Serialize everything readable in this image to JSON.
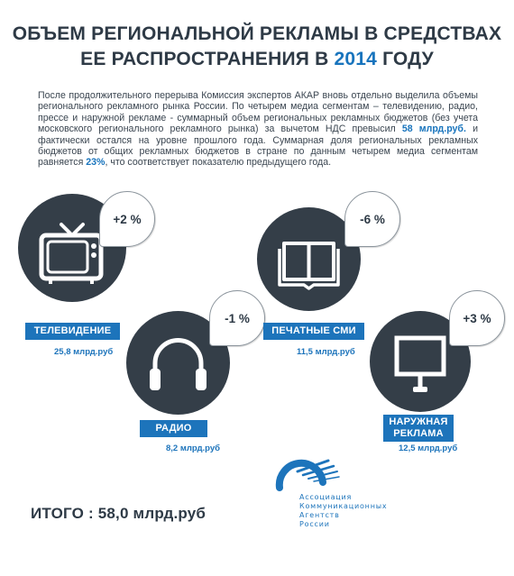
{
  "title": {
    "line1": "ОБЪЕМ РЕГИОНАЛЬНОЙ РЕКЛАМЫ В СРЕДСТВАХ",
    "line2_prefix": "ЕЕ РАСПРОСТРАНЕНИЯ В",
    "year": "2014",
    "line2_suffix": "ГОДУ"
  },
  "intro": {
    "part1": "После продолжительного перерыва Комиссия  экспертов АКАР вновь отдельно выделила объемы регионального рекламного рынка России. По четырем медиа сегментам – телевидению, радио, прессе и наружной рекламе - суммарный объем региональных рекламных бюджетов (без учета московского регионального рекламного рынка) за вычетом НДС превысил ",
    "highlight1": "58 млрд.руб.",
    "part2": " и фактически остался на уровне прошлого года. Суммарная доля региональных рекламных бюджетов от общих рекламных бюджетов в стране по данным четырем медиа сегментам равняется ",
    "highlight2": "23%",
    "part3": ", что соответствует показателю предыдущего года."
  },
  "segments": {
    "tv": {
      "label": "ТЕЛЕВИДЕНИЕ",
      "amount": "25,8 млрд.руб",
      "change": "+2 %",
      "icon": "tv-icon"
    },
    "radio": {
      "label": "РАДИО",
      "amount": "8,2 млрд.руб",
      "change": "-1 %",
      "icon": "headphones-icon"
    },
    "press": {
      "label": "ПЕЧАТНЫЕ СМИ",
      "amount": "11,5 млрд.руб",
      "change": "-6 %",
      "icon": "book-icon"
    },
    "outdoor": {
      "label_line1": "НАРУЖНАЯ",
      "label_line2": "РЕКЛАМА",
      "amount": "12,5 млрд.руб",
      "change": "+3 %",
      "icon": "billboard-icon"
    }
  },
  "total": "ИТОГО : 58,0 млрд.руб",
  "logo": {
    "lines": [
      "Ассоциация",
      "Коммуникационных",
      "Агентств",
      "России"
    ]
  },
  "colors": {
    "accent": "#1d74bb",
    "dark": "#343e48"
  }
}
